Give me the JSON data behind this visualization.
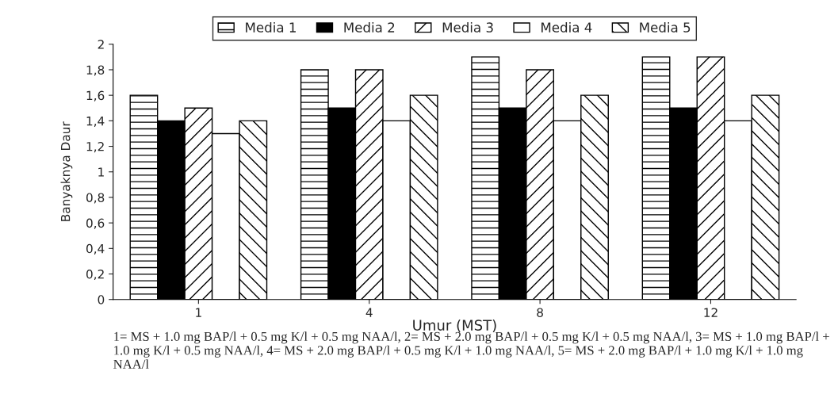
{
  "chart_data": {
    "type": "bar",
    "categories": [
      "1",
      "4",
      "8",
      "12"
    ],
    "series": [
      {
        "name": "Media 1",
        "color": "#000000",
        "values": [
          1.6,
          1.8,
          1.9,
          1.9
        ]
      },
      {
        "name": "Media 2",
        "color": "#000000",
        "values": [
          1.4,
          1.5,
          1.5,
          1.5
        ]
      },
      {
        "name": "Media 3",
        "color": "#000000",
        "values": [
          1.5,
          1.8,
          1.8,
          1.9
        ]
      },
      {
        "name": "Media 4",
        "color": "#ffffff",
        "values": [
          1.3,
          1.4,
          1.4,
          1.4
        ]
      },
      {
        "name": "Media 5",
        "color": "#000000",
        "values": [
          1.4,
          1.6,
          1.6,
          1.6
        ]
      }
    ],
    "ylim": [
      0,
      2
    ],
    "yticks": [
      0,
      {
        "value": 0.2,
        "label": "0,2"
      },
      {
        "value": 0.4,
        "label": "0,4"
      },
      {
        "value": 0.6,
        "label": "0,6"
      },
      {
        "value": 0.8,
        "label": "0,8"
      },
      1,
      {
        "value": 1.2,
        "label": "1,2"
      },
      {
        "value": 1.4,
        "label": "1,4"
      },
      {
        "value": 1.6,
        "label": "1,6"
      },
      {
        "value": 1.8,
        "label": "1,8"
      },
      2
    ],
    "xlabel": "Umur (MST)",
    "ylabel": "Banyaknya Daur",
    "legend": "top",
    "grid": false,
    "annotations": [
      "1= MS + 1.0 mg BAP/l + 0.5 mg K/l + 0.5 mg NAA/l, 2= MS + 2.0 mg BAP/l + 0.5 mg K/l + 0.5 mg NAA/l, 3= MS + 1.0 mg BAP/l + 1.0 mg K/l + 0.5 mg NAA/l, 4= MS + 2.0 mg BAP/l + 0.5 mg K/l + 1.0 mg NAA/l, 5= MS + 2.0 mg BAP/l + 1.0 mg K/l + 1.0 mg NAA/l"
    ]
  }
}
